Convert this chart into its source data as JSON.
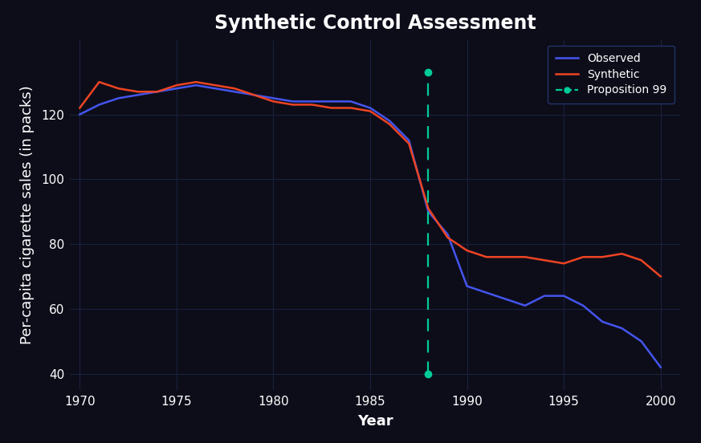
{
  "title": "Synthetic Control Assessment",
  "xlabel": "Year",
  "ylabel": "Per-capita cigarette sales (in packs)",
  "background_color": "#0d0d1a",
  "axes_background_color": "#0d0d1a",
  "grid_color": "#1a2340",
  "text_color": "#ffffff",
  "title_fontsize": 17,
  "label_fontsize": 13,
  "tick_fontsize": 11,
  "proposition99_year": 1988,
  "proposition99_color": "#00cc99",
  "observed_color": "#4455ee",
  "synthetic_color": "#ee4422",
  "xlim": [
    1969.5,
    2001
  ],
  "ylim": [
    35,
    143
  ],
  "xticks": [
    1970,
    1975,
    1980,
    1985,
    1990,
    1995,
    2000
  ],
  "yticks": [
    40,
    60,
    80,
    100,
    120
  ],
  "observed_years": [
    1970,
    1971,
    1972,
    1973,
    1974,
    1975,
    1976,
    1977,
    1978,
    1979,
    1980,
    1981,
    1982,
    1983,
    1984,
    1985,
    1986,
    1987,
    1988,
    1989,
    1990,
    1991,
    1992,
    1993,
    1994,
    1995,
    1996,
    1997,
    1998,
    1999,
    2000
  ],
  "observed_values": [
    120,
    123,
    125,
    126,
    127,
    128,
    129,
    128,
    127,
    126,
    125,
    124,
    124,
    124,
    124,
    122,
    118,
    112,
    90,
    83,
    67,
    65,
    63,
    61,
    64,
    64,
    61,
    56,
    54,
    50,
    42
  ],
  "synthetic_years": [
    1970,
    1971,
    1972,
    1973,
    1974,
    1975,
    1976,
    1977,
    1978,
    1979,
    1980,
    1981,
    1982,
    1983,
    1984,
    1985,
    1986,
    1987,
    1988,
    1989,
    1990,
    1991,
    1992,
    1993,
    1994,
    1995,
    1996,
    1997,
    1998,
    1999,
    2000
  ],
  "synthetic_values": [
    122,
    130,
    128,
    127,
    127,
    129,
    130,
    129,
    128,
    126,
    124,
    123,
    123,
    122,
    122,
    121,
    117,
    111,
    91,
    82,
    78,
    76,
    76,
    76,
    75,
    74,
    76,
    76,
    77,
    75,
    70
  ],
  "vline_top_y": 133,
  "vline_bottom_y": 40
}
